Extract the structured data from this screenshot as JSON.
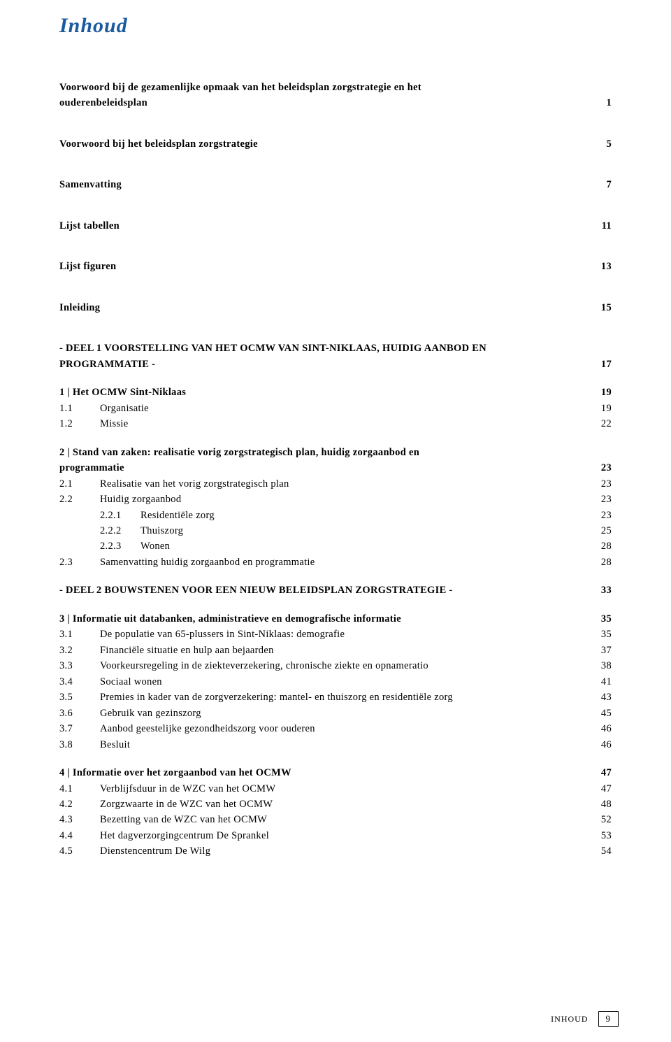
{
  "title": "Inhoud",
  "footer": {
    "label": "INHOUD",
    "page": "9"
  },
  "toc": [
    {
      "type": "row",
      "bold": true,
      "label": "Voorwoord bij de gezamenlijke opmaak van het beleidsplan zorgstrategie en het",
      "page": ""
    },
    {
      "type": "row",
      "bold": true,
      "label": "ouderenbeleidsplan",
      "page": "1"
    },
    {
      "type": "gap-lg"
    },
    {
      "type": "row",
      "bold": true,
      "label": "Voorwoord bij het beleidsplan zorgstrategie",
      "page": "5"
    },
    {
      "type": "gap-lg"
    },
    {
      "type": "row",
      "bold": true,
      "label": "Samenvatting",
      "page": "7"
    },
    {
      "type": "gap-lg"
    },
    {
      "type": "row",
      "bold": true,
      "label": "Lijst tabellen",
      "page": "11"
    },
    {
      "type": "gap-lg"
    },
    {
      "type": "row",
      "bold": true,
      "label": "Lijst figuren",
      "page": "13"
    },
    {
      "type": "gap-lg"
    },
    {
      "type": "row",
      "bold": true,
      "label": "Inleiding",
      "page": "15"
    },
    {
      "type": "gap-lg"
    },
    {
      "type": "row",
      "bold": true,
      "label": "- DEEL 1  VOORSTELLING VAN HET OCMW VAN SINT-NIKLAAS, HUIDIG AANBOD EN",
      "page": ""
    },
    {
      "type": "row",
      "bold": true,
      "label": "PROGRAMMATIE -",
      "page": "17"
    },
    {
      "type": "gap-md"
    },
    {
      "type": "row",
      "bold": true,
      "label": "1 | Het OCMW Sint-Niklaas",
      "page": "19"
    },
    {
      "type": "indent",
      "num": "1.1",
      "label": "Organisatie",
      "page": "19"
    },
    {
      "type": "indent",
      "num": "1.2",
      "label": "Missie",
      "page": "22"
    },
    {
      "type": "gap-md"
    },
    {
      "type": "row",
      "bold": true,
      "label": "2 | Stand van zaken: realisatie vorig zorgstrategisch plan, huidig zorgaanbod en",
      "page": ""
    },
    {
      "type": "row",
      "bold": true,
      "label": "programmatie",
      "page": "23"
    },
    {
      "type": "indent",
      "num": "2.1",
      "label": "Realisatie van het vorig zorgstrategisch plan",
      "page": "23"
    },
    {
      "type": "indent",
      "num": "2.2",
      "label": "Huidig zorgaanbod",
      "page": "23"
    },
    {
      "type": "indent2",
      "num": "2.2.1",
      "label": "Residentiële zorg",
      "page": "23"
    },
    {
      "type": "indent2",
      "num": "2.2.2",
      "label": "Thuiszorg",
      "page": "25"
    },
    {
      "type": "indent2",
      "num": "2.2.3",
      "label": "Wonen",
      "page": "28"
    },
    {
      "type": "indent",
      "num": "2.3",
      "label": "Samenvatting huidig zorgaanbod en programmatie",
      "page": "28"
    },
    {
      "type": "gap-md"
    },
    {
      "type": "row",
      "bold": true,
      "label": "- DEEL 2  BOUWSTENEN VOOR EEN NIEUW BELEIDSPLAN ZORGSTRATEGIE -",
      "page": "33"
    },
    {
      "type": "gap-md"
    },
    {
      "type": "row",
      "bold": true,
      "label": "3 | Informatie uit databanken, administratieve en demografische informatie",
      "page": "35"
    },
    {
      "type": "indent",
      "num": "3.1",
      "label": "De populatie van 65-plussers in Sint-Niklaas: demografie",
      "page": "35"
    },
    {
      "type": "indent",
      "num": "3.2",
      "label": "Financiële situatie en hulp aan bejaarden",
      "page": "37"
    },
    {
      "type": "indent",
      "num": "3.3",
      "label": "Voorkeursregeling in de ziekteverzekering, chronische ziekte en opnameratio",
      "page": "38"
    },
    {
      "type": "indent",
      "num": "3.4",
      "label": "Sociaal wonen",
      "page": "41"
    },
    {
      "type": "indent",
      "num": "3.5",
      "label": "Premies in kader van de zorgverzekering: mantel- en thuiszorg en residentiële zorg",
      "page": "43"
    },
    {
      "type": "indent",
      "num": "3.6",
      "label": "Gebruik van gezinszorg",
      "page": "45"
    },
    {
      "type": "indent",
      "num": "3.7",
      "label": "Aanbod geestelijke gezondheidszorg voor ouderen",
      "page": "46"
    },
    {
      "type": "indent",
      "num": "3.8",
      "label": "Besluit",
      "page": "46"
    },
    {
      "type": "gap-md"
    },
    {
      "type": "row",
      "bold": true,
      "label": "4 | Informatie over het zorgaanbod van het OCMW",
      "page": "47"
    },
    {
      "type": "indent",
      "num": "4.1",
      "label": "Verblijfsduur in de WZC van het OCMW",
      "page": "47"
    },
    {
      "type": "indent",
      "num": "4.2",
      "label": "Zorgzwaarte in de WZC van het OCMW",
      "page": "48"
    },
    {
      "type": "indent",
      "num": "4.3",
      "label": "Bezetting van de WZC van het OCMW",
      "page": "52"
    },
    {
      "type": "indent",
      "num": "4.4",
      "label": "Het dagverzorgingcentrum De Sprankel",
      "page": "53"
    },
    {
      "type": "indent",
      "num": "4.5",
      "label": "Dienstencentrum De Wilg",
      "page": "54"
    }
  ]
}
